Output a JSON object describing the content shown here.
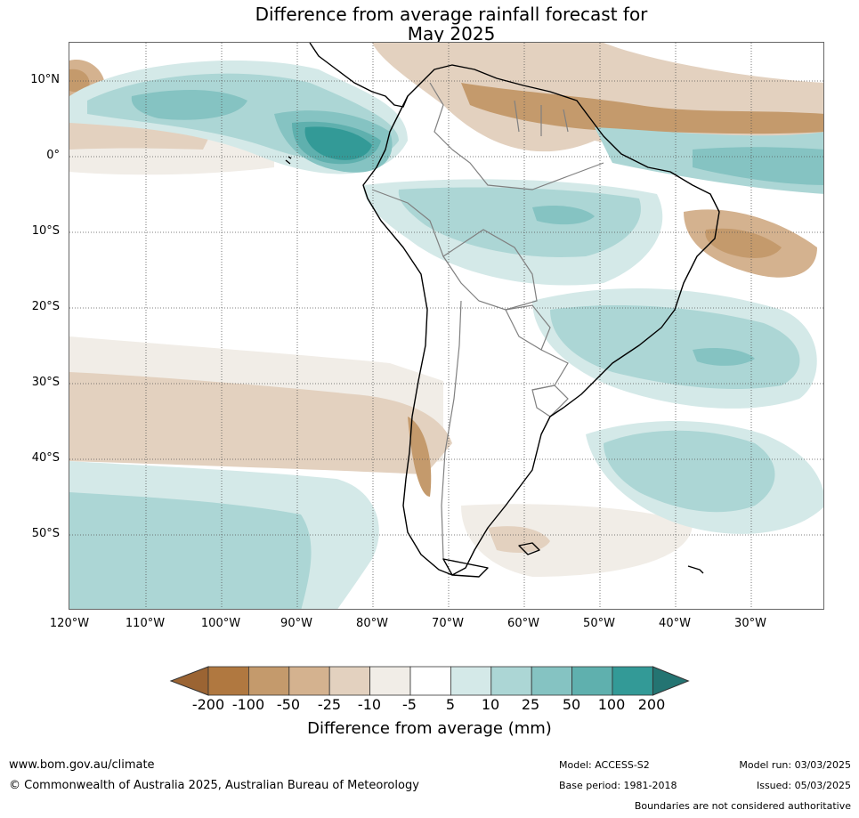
{
  "title": {
    "line1": "Difference from average rainfall forecast for",
    "line2": "May 2025"
  },
  "map": {
    "lat_labels": [
      "10°N",
      "0°",
      "10°S",
      "20°S",
      "30°S",
      "40°S",
      "50°S"
    ],
    "lon_labels": [
      "120°W",
      "110°W",
      "100°W",
      "90°W",
      "80°W",
      "70°W",
      "60°W",
      "50°W",
      "40°W",
      "30°W"
    ],
    "colors": {
      "dry_200": "#9b6433",
      "dry_100": "#b07840",
      "dry_50": "#c49a6c",
      "dry_25": "#d4b28f",
      "dry_10": "#e3d1bf",
      "dry_5": "#f1ede7",
      "neutral": "#ffffff",
      "wet_5": "#d4e9e8",
      "wet_10": "#acd6d5",
      "wet_25": "#85c3c2",
      "wet_50": "#5fb0ae",
      "wet_100": "#339a97",
      "wet_200": "#247472",
      "coastline": "#000000",
      "borders": "#808080"
    }
  },
  "colorbar": {
    "ticks": [
      "-200",
      "-100",
      "-50",
      "-25",
      "-10",
      "-5",
      "5",
      "10",
      "25",
      "50",
      "100",
      "200"
    ],
    "label": "Difference from average (mm)"
  },
  "footer": {
    "url": "www.bom.gov.au/climate",
    "copyright": "© Commonwealth of Australia 2025, Australian Bureau of Meteorology",
    "model": "Model: ACCESS-S2",
    "base_period": "Base period: 1981-2018",
    "model_run": "Model run: 03/03/2025",
    "issued": "Issued: 05/03/2025",
    "boundaries_note": "Boundaries are not considered authoritative"
  }
}
